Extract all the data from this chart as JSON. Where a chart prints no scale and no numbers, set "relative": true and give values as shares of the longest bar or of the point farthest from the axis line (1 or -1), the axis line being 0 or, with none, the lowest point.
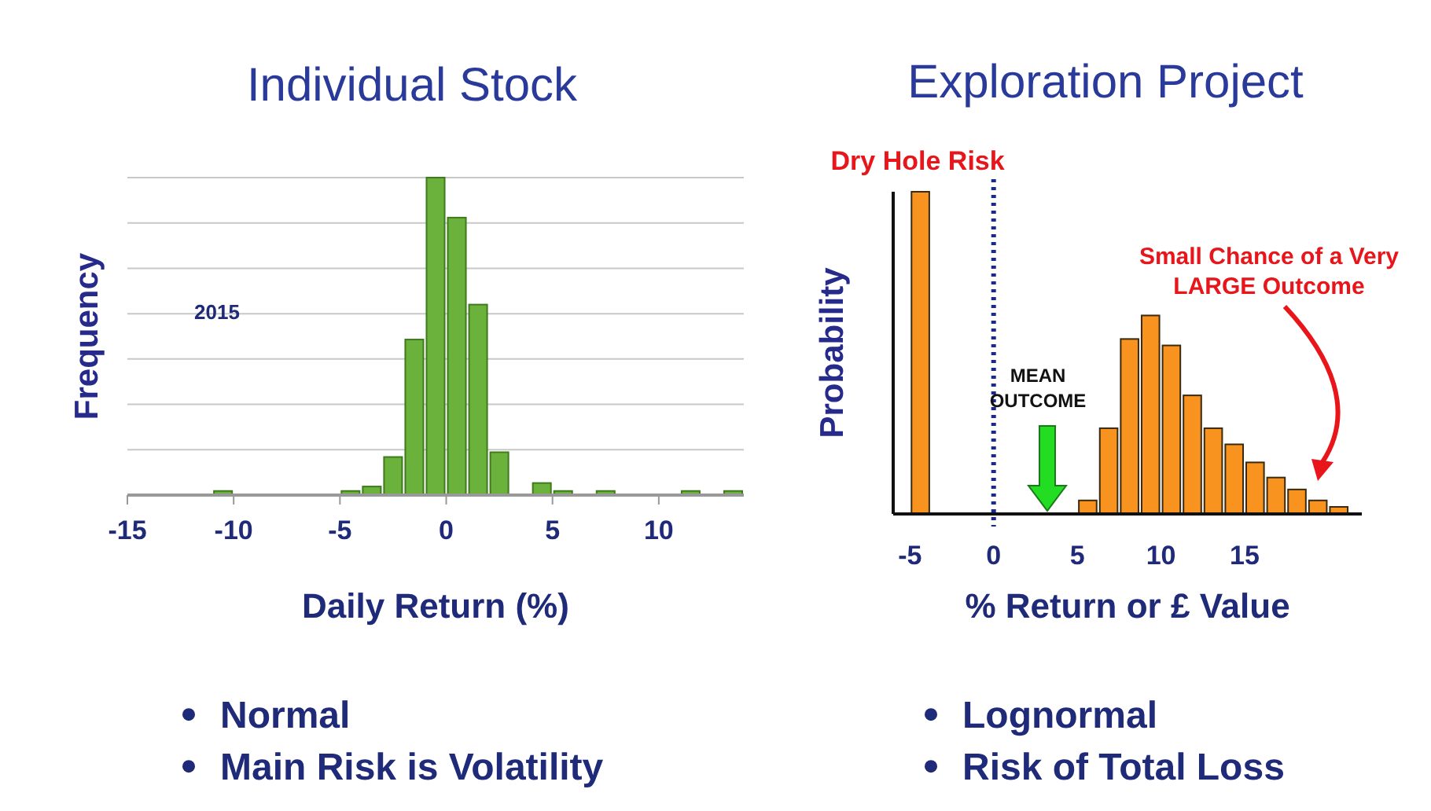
{
  "chart_data": [
    {
      "type": "bar",
      "title": "Individual Stock",
      "xlabel": "Daily Return (%)",
      "ylabel": "Frequency",
      "relative": true,
      "grid": "y",
      "color": "#6ab23c",
      "x": [
        -14.5,
        -13.5,
        -12.5,
        -11.5,
        -10.5,
        -9.5,
        -8.5,
        -7.5,
        -6.5,
        -5.5,
        -4.5,
        -3.5,
        -2.5,
        -1.5,
        -0.5,
        0.5,
        1.5,
        2.5,
        3.5,
        4.5,
        5.5,
        6.5,
        7.5,
        8.5,
        9.5,
        10.5,
        11.5,
        12.5,
        13.5
      ],
      "values": [
        0,
        0,
        0,
        0,
        0.013,
        0,
        0,
        0,
        0,
        0,
        0.013,
        0.027,
        0.12,
        0.49,
        1,
        0.874,
        0.6,
        0.135,
        0,
        0.038,
        0.013,
        0,
        0.013,
        0,
        0,
        0,
        0.013,
        0,
        0.013
      ],
      "xlim": [
        -15,
        14
      ],
      "xticks": [
        -15,
        -10,
        -5,
        0,
        5,
        10
      ],
      "annotations": [
        "2015",
        "Normal",
        "Main Risk is Volatility"
      ]
    },
    {
      "type": "bar",
      "title": "Exploration Project",
      "xlabel": "% Return or £ Value",
      "ylabel": "Probability",
      "relative": true,
      "color": "#f7931e",
      "x": [
        -4.375,
        -3.125,
        -1.875,
        -0.625,
        0.625,
        1.875,
        3.125,
        4.375,
        5.625,
        6.875,
        8.125,
        9.375,
        10.625,
        11.875,
        13.125,
        14.375,
        15.625,
        16.875,
        18.125,
        19.375,
        20.625
      ],
      "values": [
        1,
        0,
        0,
        0,
        0,
        0,
        0,
        0,
        0.042,
        0.266,
        0.543,
        0.616,
        0.523,
        0.368,
        0.266,
        0.216,
        0.16,
        0.113,
        0.076,
        0.042,
        0.022
      ],
      "xlim": [
        -6,
        22
      ],
      "xticks": [
        -5,
        0,
        5,
        10,
        15
      ],
      "ref_lines": [
        {
          "axis": "x",
          "value": 0,
          "color": "#1a2a8c",
          "line_style": "dotted"
        }
      ],
      "annotations": [
        {
          "text": "Dry Hole Risk",
          "x": -4.375,
          "y": 1
        },
        "MEAN OUTCOME",
        "Small Chance of a Very LARGE Outcome",
        "Lognormal",
        "Risk of Total Loss"
      ]
    }
  ]
}
